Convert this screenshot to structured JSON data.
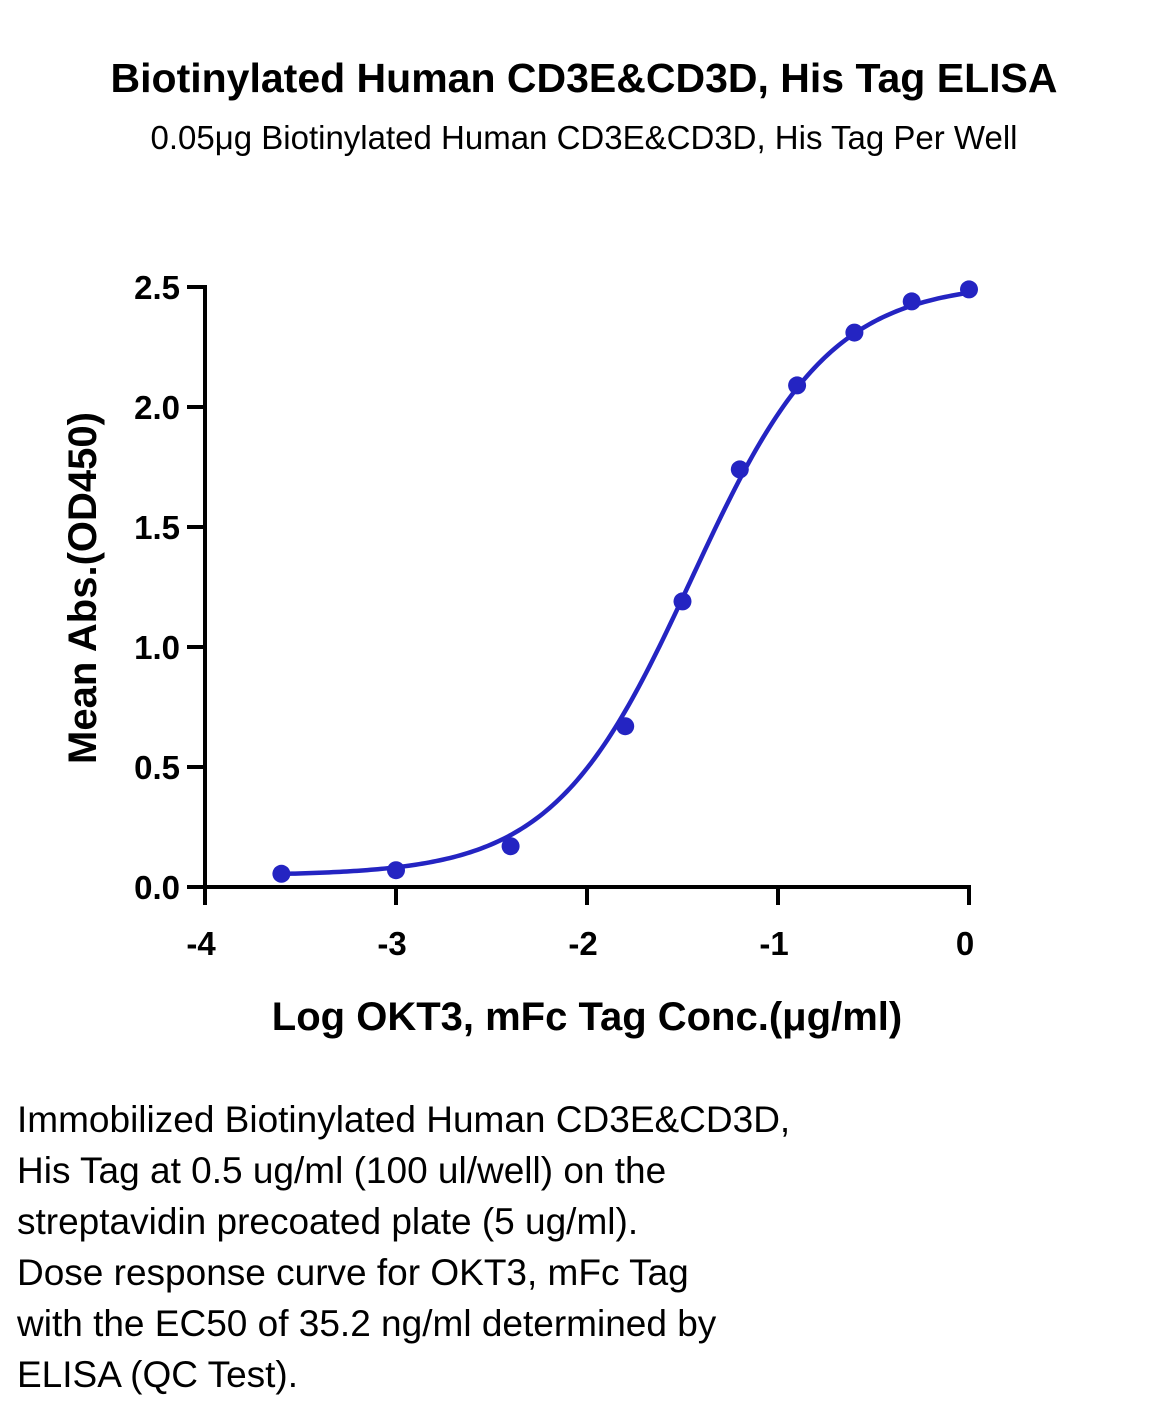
{
  "chart_data": {
    "type": "scatter",
    "title": "Biotinylated Human CD3E&CD3D, His Tag ELISA",
    "subtitle": "0.05μg Biotinylated Human CD3E&CD3D, His Tag Per Well",
    "xlabel": "Log OKT3, mFc Tag Conc.(μg/ml)",
    "ylabel": "Mean Abs.(OD450)",
    "xlim": [
      -4,
      0
    ],
    "ylim": [
      0,
      2.5
    ],
    "x_ticks": [
      "-4",
      "-3",
      "-2",
      "-1",
      "0"
    ],
    "x_tick_values": [
      -4,
      -3,
      -2,
      -1,
      0
    ],
    "y_ticks": [
      "0.0",
      "0.5",
      "1.0",
      "1.5",
      "2.0",
      "2.5"
    ],
    "y_tick_values": [
      0,
      0.5,
      1.0,
      1.5,
      2.0,
      2.5
    ],
    "grid": false,
    "series": [
      {
        "x": [
          -3.6,
          -3.0,
          -2.4,
          -1.8,
          -1.5,
          -1.2,
          -0.9,
          -0.6,
          -0.3,
          0.0
        ],
        "y": [
          0.055,
          0.07,
          0.17,
          0.67,
          1.19,
          1.74,
          2.09,
          2.31,
          2.44,
          2.49
        ],
        "fit": {
          "model": "4PL",
          "bottom": 0.048,
          "top": 2.52,
          "logEC50": -1.453,
          "hill": 1.2
        }
      }
    ],
    "color": "#2424c2"
  },
  "caption": {
    "lines": [
      "Immobilized Biotinylated Human CD3E&CD3D,",
      "His Tag at 0.5 ug/ml (100 ul/well) on the",
      "streptavidin precoated plate (5 ug/ml).",
      "Dose response curve for OKT3, mFc Tag",
      "with the EC50 of 35.2 ng/ml determined by",
      "ELISA (QC Test)."
    ]
  }
}
